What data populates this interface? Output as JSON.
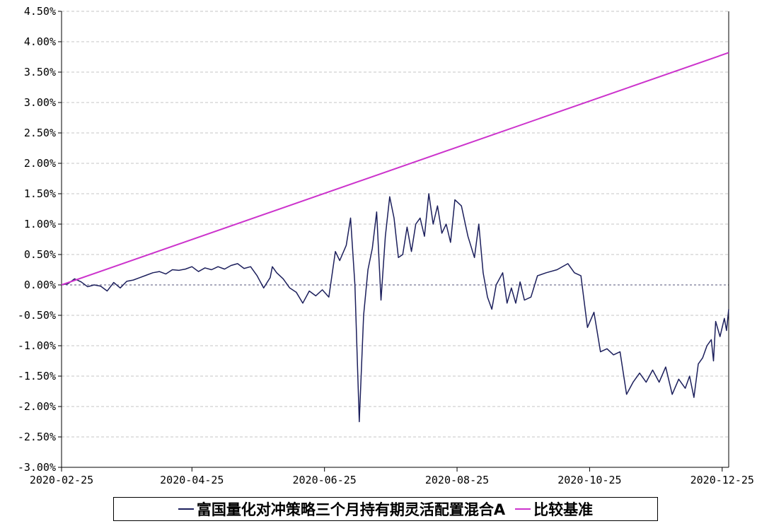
{
  "chart_data": {
    "type": "line",
    "title": "",
    "xlabel": "",
    "ylabel": "",
    "ylim": [
      -3.0,
      4.5
    ],
    "yticks": [
      "4.50%",
      "4.00%",
      "3.50%",
      "3.00%",
      "2.50%",
      "2.00%",
      "1.50%",
      "1.00%",
      "0.50%",
      "0.00%",
      "-0.50%",
      "-1.00%",
      "-1.50%",
      "-2.00%",
      "-2.50%",
      "-3.00%"
    ],
    "xticks": [
      "2020-02-25",
      "2020-04-25",
      "2020-06-25",
      "2020-08-25",
      "2020-10-25",
      "2020-12-25"
    ],
    "xlim": [
      "2020-02-25",
      "2020-12-28"
    ],
    "grid": true,
    "legend_position": "bottom",
    "series": [
      {
        "name": "富国量化对冲策略三个月持有期灵活配置混合A",
        "color": "#1c1f5c",
        "points": [
          [
            "2020-02-25",
            0.0
          ],
          [
            "2020-02-28",
            0.02
          ],
          [
            "2020-03-02",
            0.1
          ],
          [
            "2020-03-05",
            0.05
          ],
          [
            "2020-03-08",
            -0.03
          ],
          [
            "2020-03-11",
            0.0
          ],
          [
            "2020-03-14",
            -0.02
          ],
          [
            "2020-03-17",
            -0.1
          ],
          [
            "2020-03-20",
            0.04
          ],
          [
            "2020-03-23",
            -0.05
          ],
          [
            "2020-03-26",
            0.06
          ],
          [
            "2020-03-29",
            0.08
          ],
          [
            "2020-04-01",
            0.12
          ],
          [
            "2020-04-04",
            0.16
          ],
          [
            "2020-04-07",
            0.2
          ],
          [
            "2020-04-10",
            0.22
          ],
          [
            "2020-04-13",
            0.18
          ],
          [
            "2020-04-16",
            0.25
          ],
          [
            "2020-04-19",
            0.24
          ],
          [
            "2020-04-22",
            0.26
          ],
          [
            "2020-04-25",
            0.3
          ],
          [
            "2020-04-28",
            0.22
          ],
          [
            "2020-05-01",
            0.28
          ],
          [
            "2020-05-04",
            0.25
          ],
          [
            "2020-05-07",
            0.3
          ],
          [
            "2020-05-10",
            0.26
          ],
          [
            "2020-05-13",
            0.32
          ],
          [
            "2020-05-16",
            0.35
          ],
          [
            "2020-05-19",
            0.27
          ],
          [
            "2020-05-22",
            0.3
          ],
          [
            "2020-05-25",
            0.15
          ],
          [
            "2020-05-28",
            -0.05
          ],
          [
            "2020-05-31",
            0.12
          ],
          [
            "2020-06-01",
            0.3
          ],
          [
            "2020-06-03",
            0.2
          ],
          [
            "2020-06-06",
            0.1
          ],
          [
            "2020-06-09",
            -0.05
          ],
          [
            "2020-06-12",
            -0.12
          ],
          [
            "2020-06-15",
            -0.3
          ],
          [
            "2020-06-18",
            -0.1
          ],
          [
            "2020-06-21",
            -0.18
          ],
          [
            "2020-06-24",
            -0.08
          ],
          [
            "2020-06-27",
            -0.2
          ],
          [
            "2020-06-30",
            0.55
          ],
          [
            "2020-07-02",
            0.4
          ],
          [
            "2020-07-05",
            0.65
          ],
          [
            "2020-07-07",
            1.1
          ],
          [
            "2020-07-09",
            0.0
          ],
          [
            "2020-07-11",
            -2.25
          ],
          [
            "2020-07-13",
            -0.5
          ],
          [
            "2020-07-15",
            0.25
          ],
          [
            "2020-07-17",
            0.6
          ],
          [
            "2020-07-19",
            1.2
          ],
          [
            "2020-07-21",
            -0.25
          ],
          [
            "2020-07-23",
            0.8
          ],
          [
            "2020-07-25",
            1.45
          ],
          [
            "2020-07-27",
            1.1
          ],
          [
            "2020-07-29",
            0.45
          ],
          [
            "2020-07-31",
            0.5
          ],
          [
            "2020-08-02",
            0.95
          ],
          [
            "2020-08-04",
            0.55
          ],
          [
            "2020-08-06",
            1.0
          ],
          [
            "2020-08-08",
            1.1
          ],
          [
            "2020-08-10",
            0.8
          ],
          [
            "2020-08-12",
            1.5
          ],
          [
            "2020-08-14",
            1.0
          ],
          [
            "2020-08-16",
            1.3
          ],
          [
            "2020-08-18",
            0.85
          ],
          [
            "2020-08-20",
            1.0
          ],
          [
            "2020-08-22",
            0.7
          ],
          [
            "2020-08-24",
            1.4
          ],
          [
            "2020-08-27",
            1.3
          ],
          [
            "2020-08-30",
            0.8
          ],
          [
            "2020-09-02",
            0.45
          ],
          [
            "2020-09-04",
            1.0
          ],
          [
            "2020-09-06",
            0.2
          ],
          [
            "2020-09-08",
            -0.2
          ],
          [
            "2020-09-10",
            -0.4
          ],
          [
            "2020-09-12",
            0.0
          ],
          [
            "2020-09-15",
            0.2
          ],
          [
            "2020-09-17",
            -0.3
          ],
          [
            "2020-09-19",
            -0.05
          ],
          [
            "2020-09-21",
            -0.3
          ],
          [
            "2020-09-23",
            0.05
          ],
          [
            "2020-09-25",
            -0.25
          ],
          [
            "2020-09-28",
            -0.2
          ],
          [
            "2020-10-01",
            0.15
          ],
          [
            "2020-10-05",
            0.2
          ],
          [
            "2020-10-10",
            0.25
          ],
          [
            "2020-10-15",
            0.35
          ],
          [
            "2020-10-18",
            0.2
          ],
          [
            "2020-10-21",
            0.15
          ],
          [
            "2020-10-24",
            -0.7
          ],
          [
            "2020-10-27",
            -0.45
          ],
          [
            "2020-10-30",
            -1.1
          ],
          [
            "2020-11-02",
            -1.05
          ],
          [
            "2020-11-05",
            -1.15
          ],
          [
            "2020-11-08",
            -1.1
          ],
          [
            "2020-11-11",
            -1.8
          ],
          [
            "2020-11-14",
            -1.6
          ],
          [
            "2020-11-17",
            -1.45
          ],
          [
            "2020-11-20",
            -1.6
          ],
          [
            "2020-11-23",
            -1.4
          ],
          [
            "2020-11-26",
            -1.6
          ],
          [
            "2020-11-29",
            -1.35
          ],
          [
            "2020-12-02",
            -1.8
          ],
          [
            "2020-12-05",
            -1.55
          ],
          [
            "2020-12-08",
            -1.7
          ],
          [
            "2020-12-10",
            -1.5
          ],
          [
            "2020-12-12",
            -1.85
          ],
          [
            "2020-12-14",
            -1.3
          ],
          [
            "2020-12-16",
            -1.2
          ],
          [
            "2020-12-18",
            -1.0
          ],
          [
            "2020-12-20",
            -0.9
          ],
          [
            "2020-12-21",
            -1.25
          ],
          [
            "2020-12-22",
            -0.6
          ],
          [
            "2020-12-24",
            -0.85
          ],
          [
            "2020-12-26",
            -0.55
          ],
          [
            "2020-12-27",
            -0.75
          ],
          [
            "2020-12-28",
            -0.4
          ]
        ]
      },
      {
        "name": "比较基准",
        "color": "#cc33cc",
        "points": [
          [
            "2020-02-25",
            0.0
          ],
          [
            "2020-12-28",
            3.82
          ]
        ]
      }
    ]
  }
}
